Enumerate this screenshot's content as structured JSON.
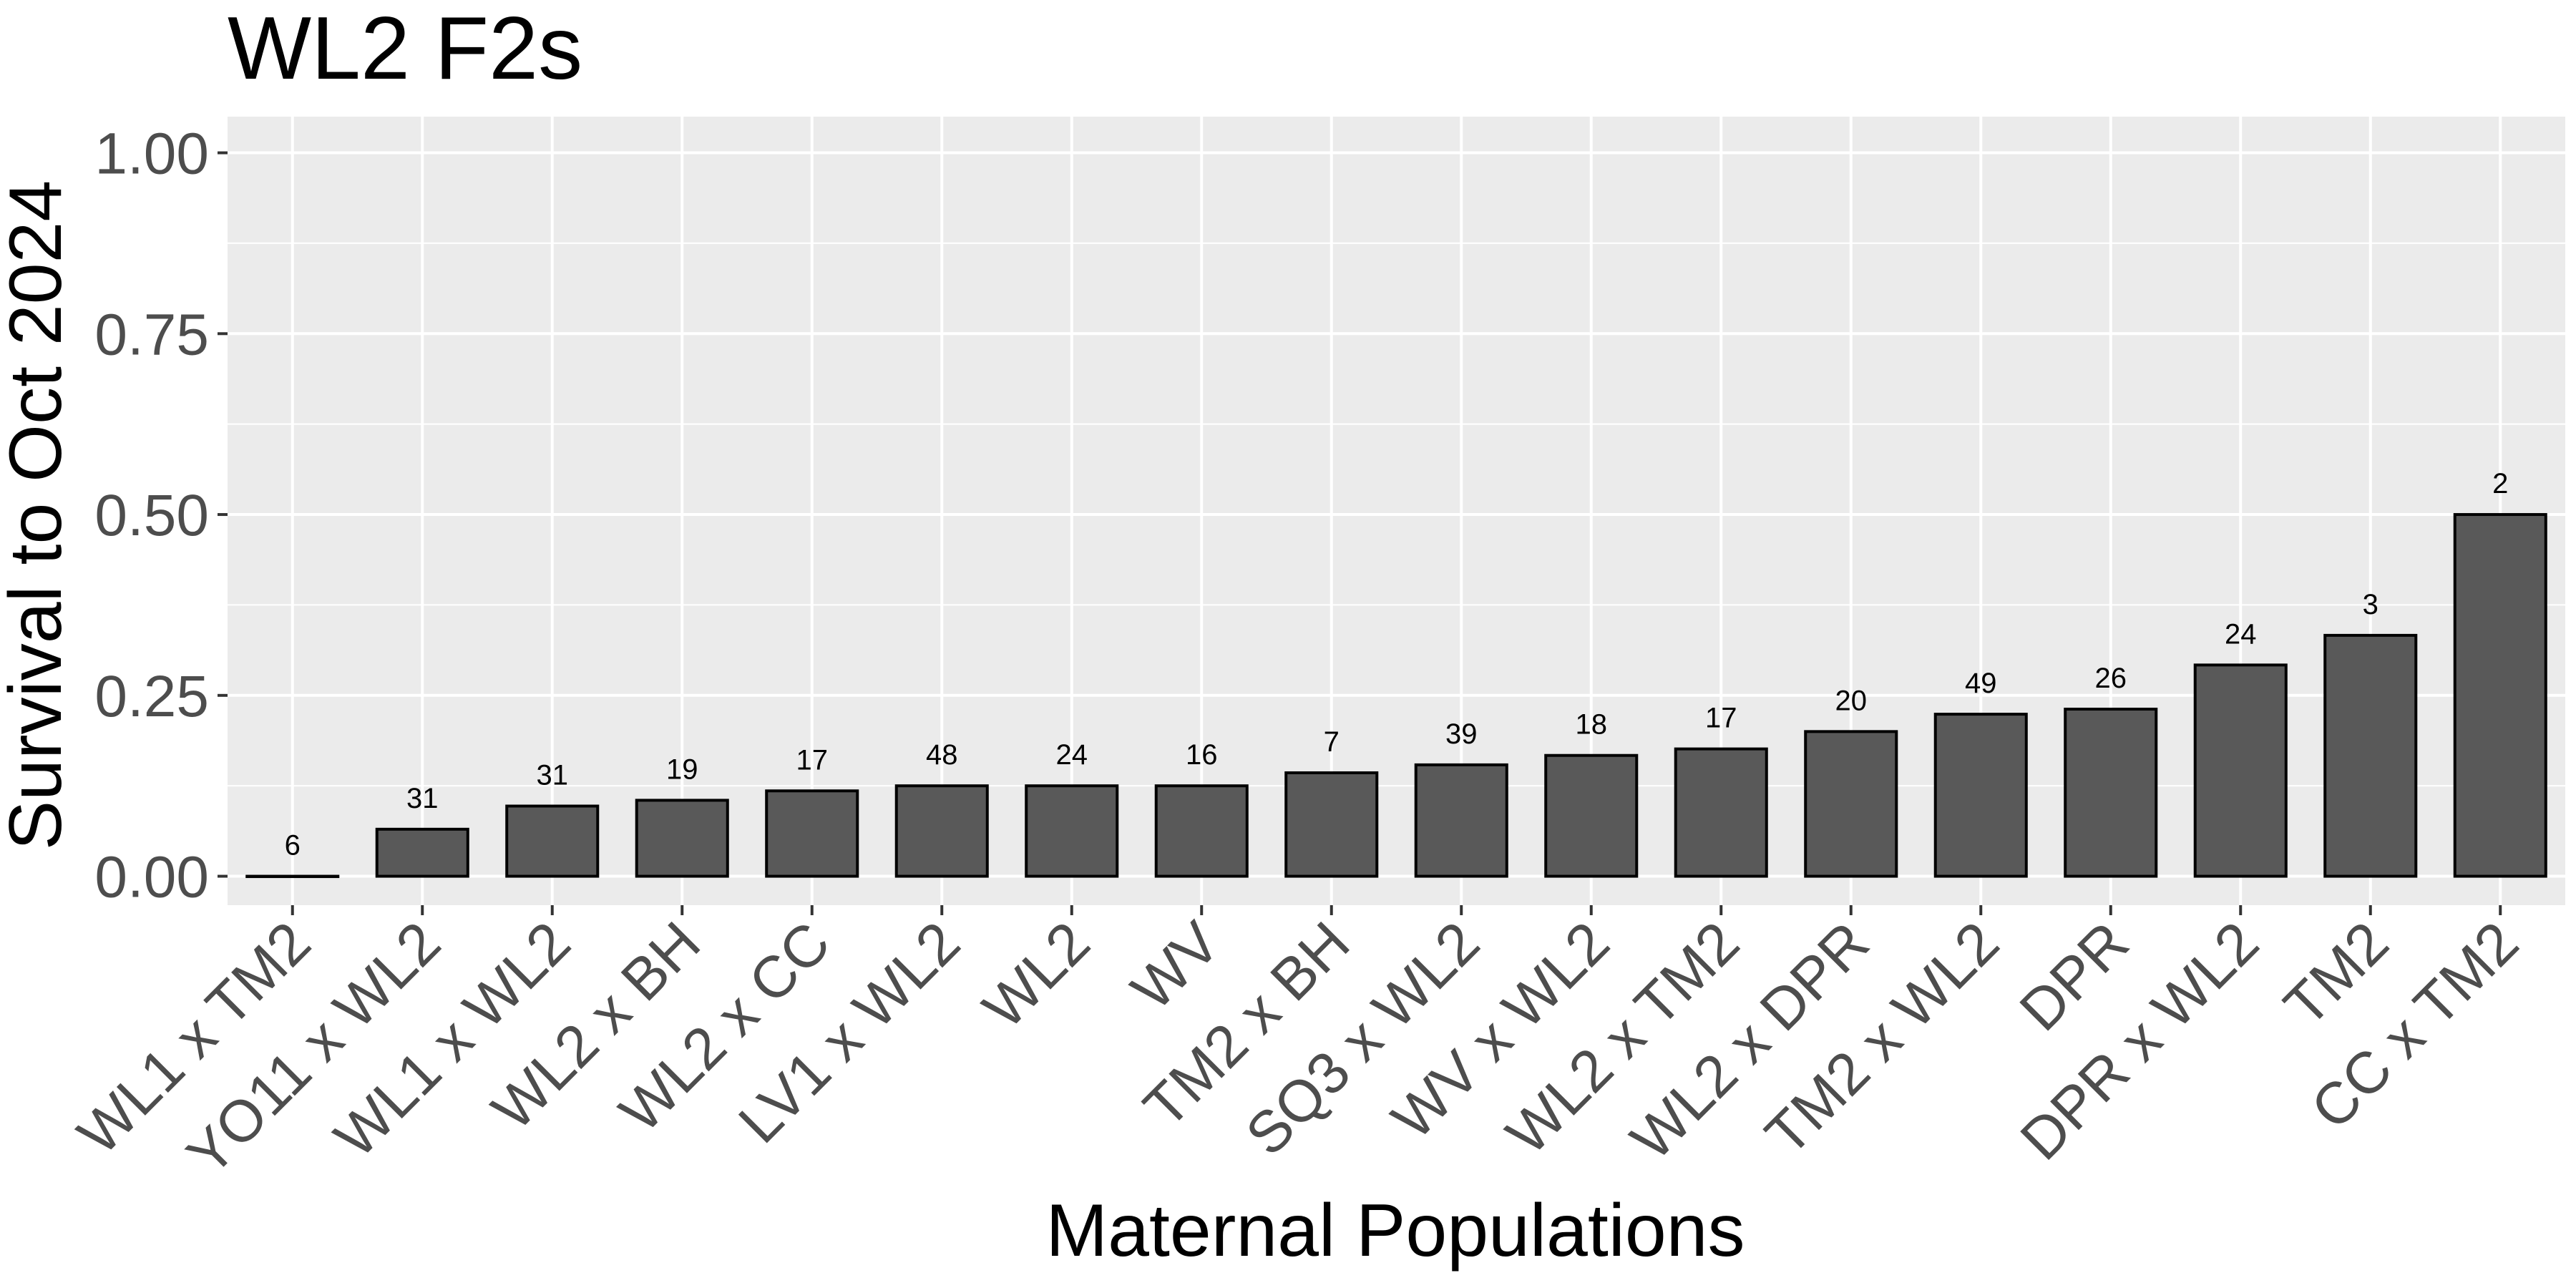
{
  "chart_data": {
    "type": "bar",
    "title": "WL2 F2s",
    "xlabel": "Maternal Populations",
    "ylabel": "Survival to Oct 2024",
    "ylim": [
      -0.04,
      1.05
    ],
    "yticks": [
      0,
      0.25,
      0.5,
      0.75,
      1
    ],
    "ytick_labels": [
      "0.00",
      "0.25",
      "0.50",
      "0.75",
      "1.00"
    ],
    "grid": true,
    "categories": [
      "WL1 x TM2",
      "YO11 x WL2",
      "WL1 x WL2",
      "WL2 x BH",
      "WL2 x CC",
      "LV1 x WL2",
      "WL2",
      "WV",
      "TM2 x BH",
      "SQ3 x WL2",
      "WV x WL2",
      "WL2 x TM2",
      "WL2 x DPR",
      "TM2 x WL2",
      "DPR",
      "DPR x WL2",
      "TM2",
      "CC x TM2"
    ],
    "values": [
      0.0,
      0.065,
      0.097,
      0.105,
      0.118,
      0.125,
      0.125,
      0.125,
      0.143,
      0.154,
      0.167,
      0.176,
      0.2,
      0.224,
      0.231,
      0.292,
      0.333,
      0.5
    ],
    "bar_labels": [
      "6",
      "31",
      "31",
      "19",
      "17",
      "48",
      "24",
      "16",
      "7",
      "39",
      "18",
      "17",
      "20",
      "49",
      "26",
      "24",
      "3",
      "2"
    ],
    "colors": {
      "bar_fill": "#595959",
      "bar_stroke": "#000000",
      "panel": "#ebebeb",
      "grid": "#ffffff"
    }
  }
}
